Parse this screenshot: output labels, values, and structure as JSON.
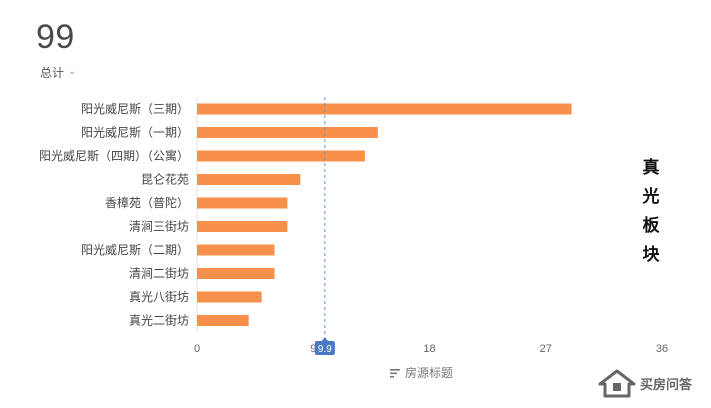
{
  "summary": {
    "total": "99",
    "total_label": "总计"
  },
  "side_title": [
    "真",
    "光",
    "板",
    "块"
  ],
  "watermark": "买房问答",
  "legend_label": "房源标题",
  "colors": {
    "bar": "#f7904a",
    "refline": "#5b9bd5",
    "badge": "#4a78c2"
  },
  "chart_data": {
    "type": "bar",
    "orientation": "horizontal",
    "categories": [
      "阳光威尼斯（三期）",
      "阳光威尼斯（一期）",
      "阳光威尼斯（四期）（公寓）",
      "昆仑花苑",
      "香樟苑（普陀）",
      "清涧三街坊",
      "阳光威尼斯（二期）",
      "清涧二街坊",
      "真光八街坊",
      "真光二街坊"
    ],
    "values": [
      29,
      14,
      13,
      8,
      7,
      7,
      6,
      6,
      5,
      4
    ],
    "xlim": [
      0,
      36
    ],
    "xticks": [
      0,
      9,
      18,
      27,
      36
    ],
    "reference_line": {
      "value": 9.9,
      "label": "9.9"
    },
    "xlabel": "房源标题",
    "grid": false
  }
}
